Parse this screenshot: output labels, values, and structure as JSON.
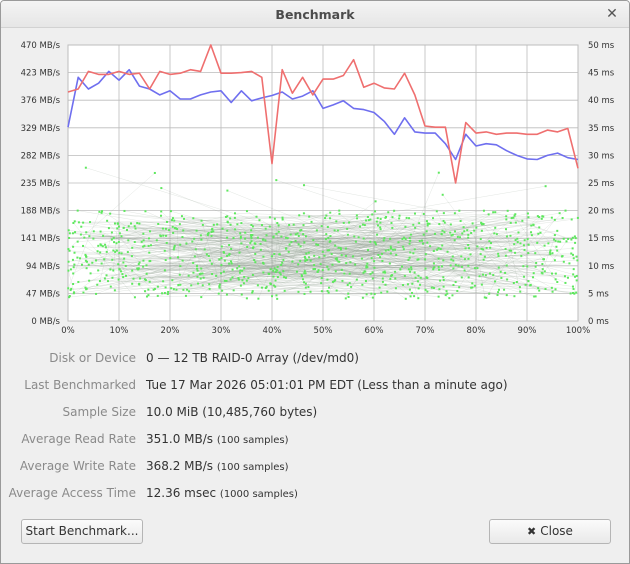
{
  "window": {
    "title": "Benchmark"
  },
  "chart_data": {
    "type": "line",
    "xlabel": "",
    "ylabel": "",
    "x_ticks": [
      "0%",
      "10%",
      "20%",
      "30%",
      "40%",
      "50%",
      "60%",
      "70%",
      "80%",
      "90%",
      "100%"
    ],
    "y_left_ticks": [
      "0 MB/s",
      "47 MB/s",
      "94 MB/s",
      "141 MB/s",
      "188 MB/s",
      "235 MB/s",
      "282 MB/s",
      "329 MB/s",
      "376 MB/s",
      "423 MB/s",
      "470 MB/s"
    ],
    "y_right_ticks": [
      "0 ms",
      "5 ms",
      "10 ms",
      "15 ms",
      "20 ms",
      "25 ms",
      "30 ms",
      "35 ms",
      "40 ms",
      "45 ms",
      "50 ms"
    ],
    "y_left_range": [
      0,
      470
    ],
    "y_right_range": [
      0,
      50
    ],
    "grid": true,
    "colors": {
      "read": "#6f6fef",
      "write": "#ef6f6f",
      "access": "#5ee85e"
    },
    "series": [
      {
        "key": "read",
        "x": [
          0,
          2,
          4,
          6,
          8,
          10,
          12,
          14,
          16,
          18,
          20,
          22,
          24,
          26,
          28,
          30,
          32,
          34,
          36,
          38,
          40,
          42,
          44,
          46,
          48,
          50,
          52,
          54,
          56,
          58,
          60,
          62,
          64,
          66,
          68,
          70,
          72,
          74,
          76,
          78,
          80,
          82,
          84,
          86,
          88,
          90,
          92,
          94,
          96,
          98,
          100
        ],
        "values": [
          330,
          415,
          395,
          405,
          425,
          410,
          428,
          400,
          395,
          385,
          392,
          378,
          378,
          385,
          390,
          392,
          372,
          392,
          375,
          380,
          384,
          390,
          378,
          383,
          392,
          362,
          368,
          375,
          362,
          360,
          355,
          340,
          318,
          346,
          322,
          320,
          320,
          302,
          275,
          318,
          298,
          302,
          300,
          290,
          282,
          276,
          275,
          282,
          286,
          278,
          275
        ]
      },
      {
        "key": "write",
        "x": [
          0,
          2,
          4,
          6,
          8,
          10,
          12,
          14,
          16,
          18,
          20,
          22,
          24,
          26,
          28,
          30,
          32,
          34,
          36,
          38,
          40,
          42,
          44,
          46,
          48,
          50,
          52,
          54,
          56,
          58,
          60,
          62,
          64,
          66,
          68,
          70,
          72,
          74,
          76,
          78,
          80,
          82,
          84,
          86,
          88,
          90,
          92,
          94,
          96,
          98,
          100
        ],
        "values": [
          390,
          395,
          425,
          420,
          420,
          425,
          420,
          422,
          395,
          425,
          420,
          422,
          428,
          425,
          470,
          422,
          422,
          423,
          425,
          415,
          268,
          428,
          388,
          415,
          385,
          412,
          412,
          418,
          445,
          398,
          405,
          397,
          395,
          422,
          385,
          332,
          330,
          330,
          235,
          338,
          320,
          322,
          318,
          320,
          320,
          318,
          318,
          325,
          322,
          328,
          260
        ]
      }
    ],
    "access_time_samples": 1000
  },
  "info": {
    "disk_label": "Disk or Device",
    "disk_value": "0 — 12 TB RAID-0 Array (/dev/md0)",
    "last_label": "Last Benchmarked",
    "last_value": "Tue 17 Mar 2026 05:01:01 PM EDT (Less than a minute ago)",
    "sample_label": "Sample Size",
    "sample_value": "10.0 MiB (10,485,760 bytes)",
    "read_label": "Average Read Rate",
    "read_value": "351.0 MB/s",
    "read_samples": "(100 samples)",
    "write_label": "Average Write Rate",
    "write_value": "368.2 MB/s",
    "write_samples": "(100 samples)",
    "access_label": "Average Access Time",
    "access_value": "12.36 msec",
    "access_samples": "(1000 samples)"
  },
  "buttons": {
    "start_label": "Start Benchmark...",
    "close_label": "Close",
    "close_icon": "close-icon"
  }
}
